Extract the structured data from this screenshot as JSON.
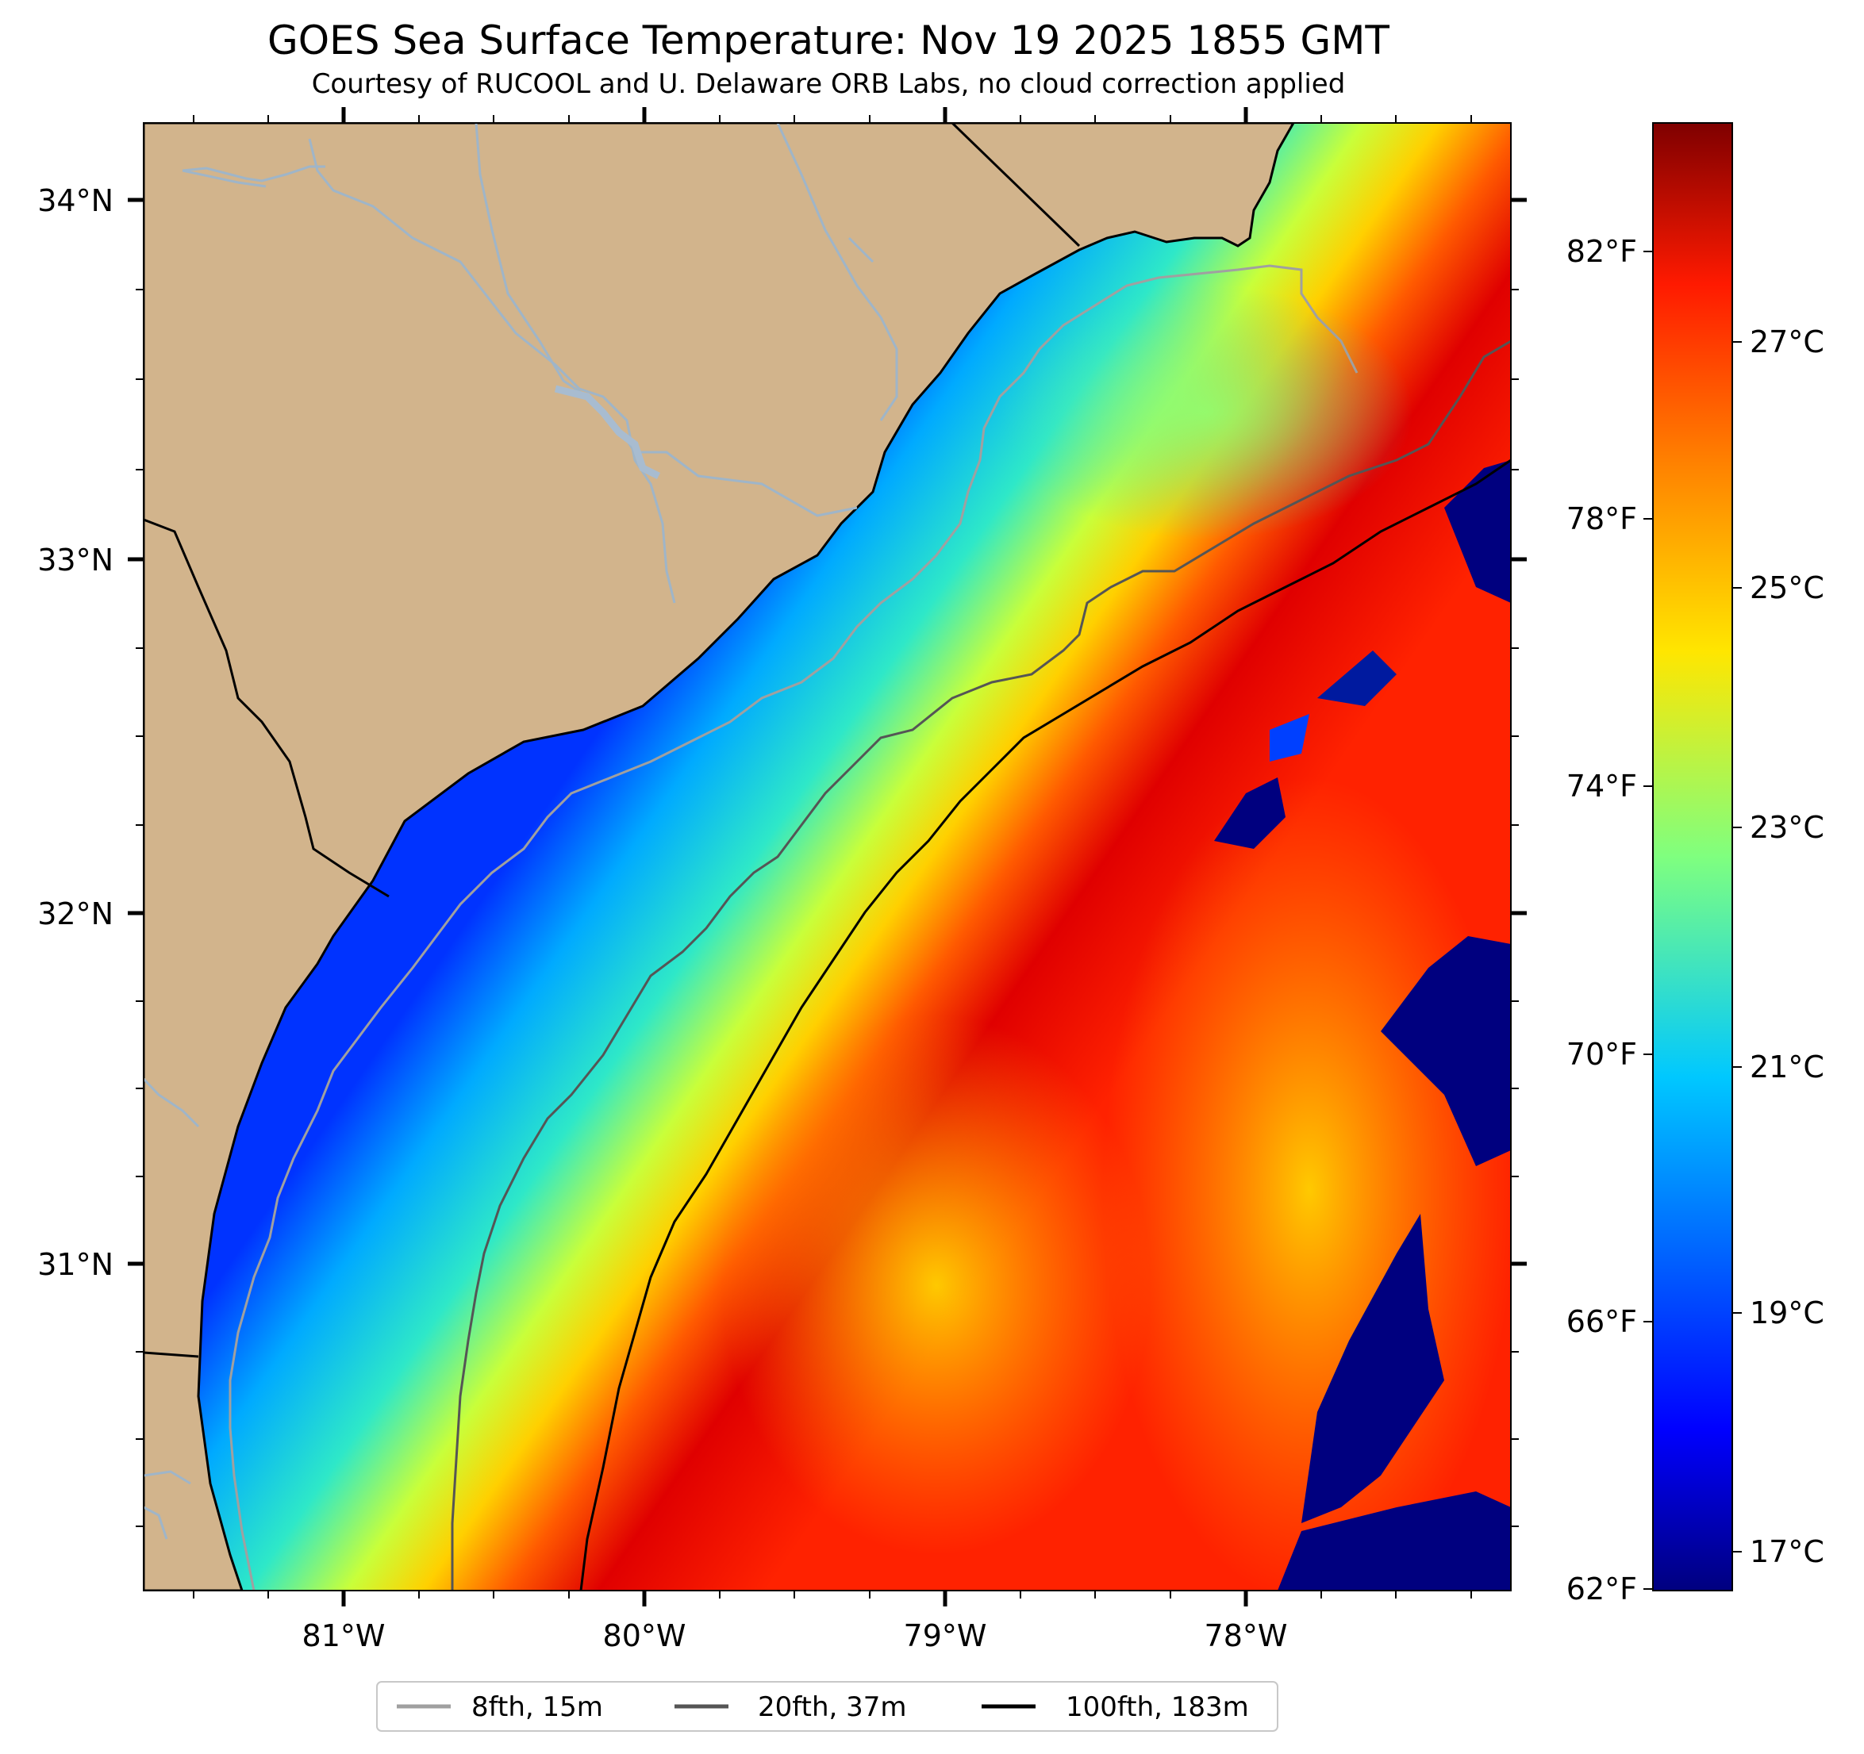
{
  "title": "GOES Sea Surface Temperature: Nov 19 2025 1855 GMT",
  "subtitle": "Courtesy of RUCOOL and U. Delaware ORB Labs, no cloud correction applied",
  "map": {
    "lat_labels": [
      "34°N",
      "33°N",
      "32°N",
      "31°N"
    ],
    "lon_labels": [
      "81°W",
      "80°W",
      "79°W",
      "78°W"
    ],
    "colors": {
      "land": "#d2b48c",
      "rivers": "#9fb5c8",
      "coast": "#000000",
      "iso_8fth": "#a0a0a0",
      "iso_20fth": "#555555",
      "iso_100fth": "#000000"
    }
  },
  "colorbar": {
    "f_labels": [
      "82°F",
      "78°F",
      "74°F",
      "70°F",
      "66°F",
      "62°F"
    ],
    "c_labels": [
      "27°C",
      "25°C",
      "23°C",
      "21°C",
      "19°C",
      "17°C"
    ],
    "colormap": "jet"
  },
  "legend": {
    "items": [
      {
        "label": "8fth, 15m",
        "color": "#a0a0a0"
      },
      {
        "label": "20fth, 37m",
        "color": "#555555"
      },
      {
        "label": "100fth, 183m",
        "color": "#000000"
      }
    ]
  }
}
